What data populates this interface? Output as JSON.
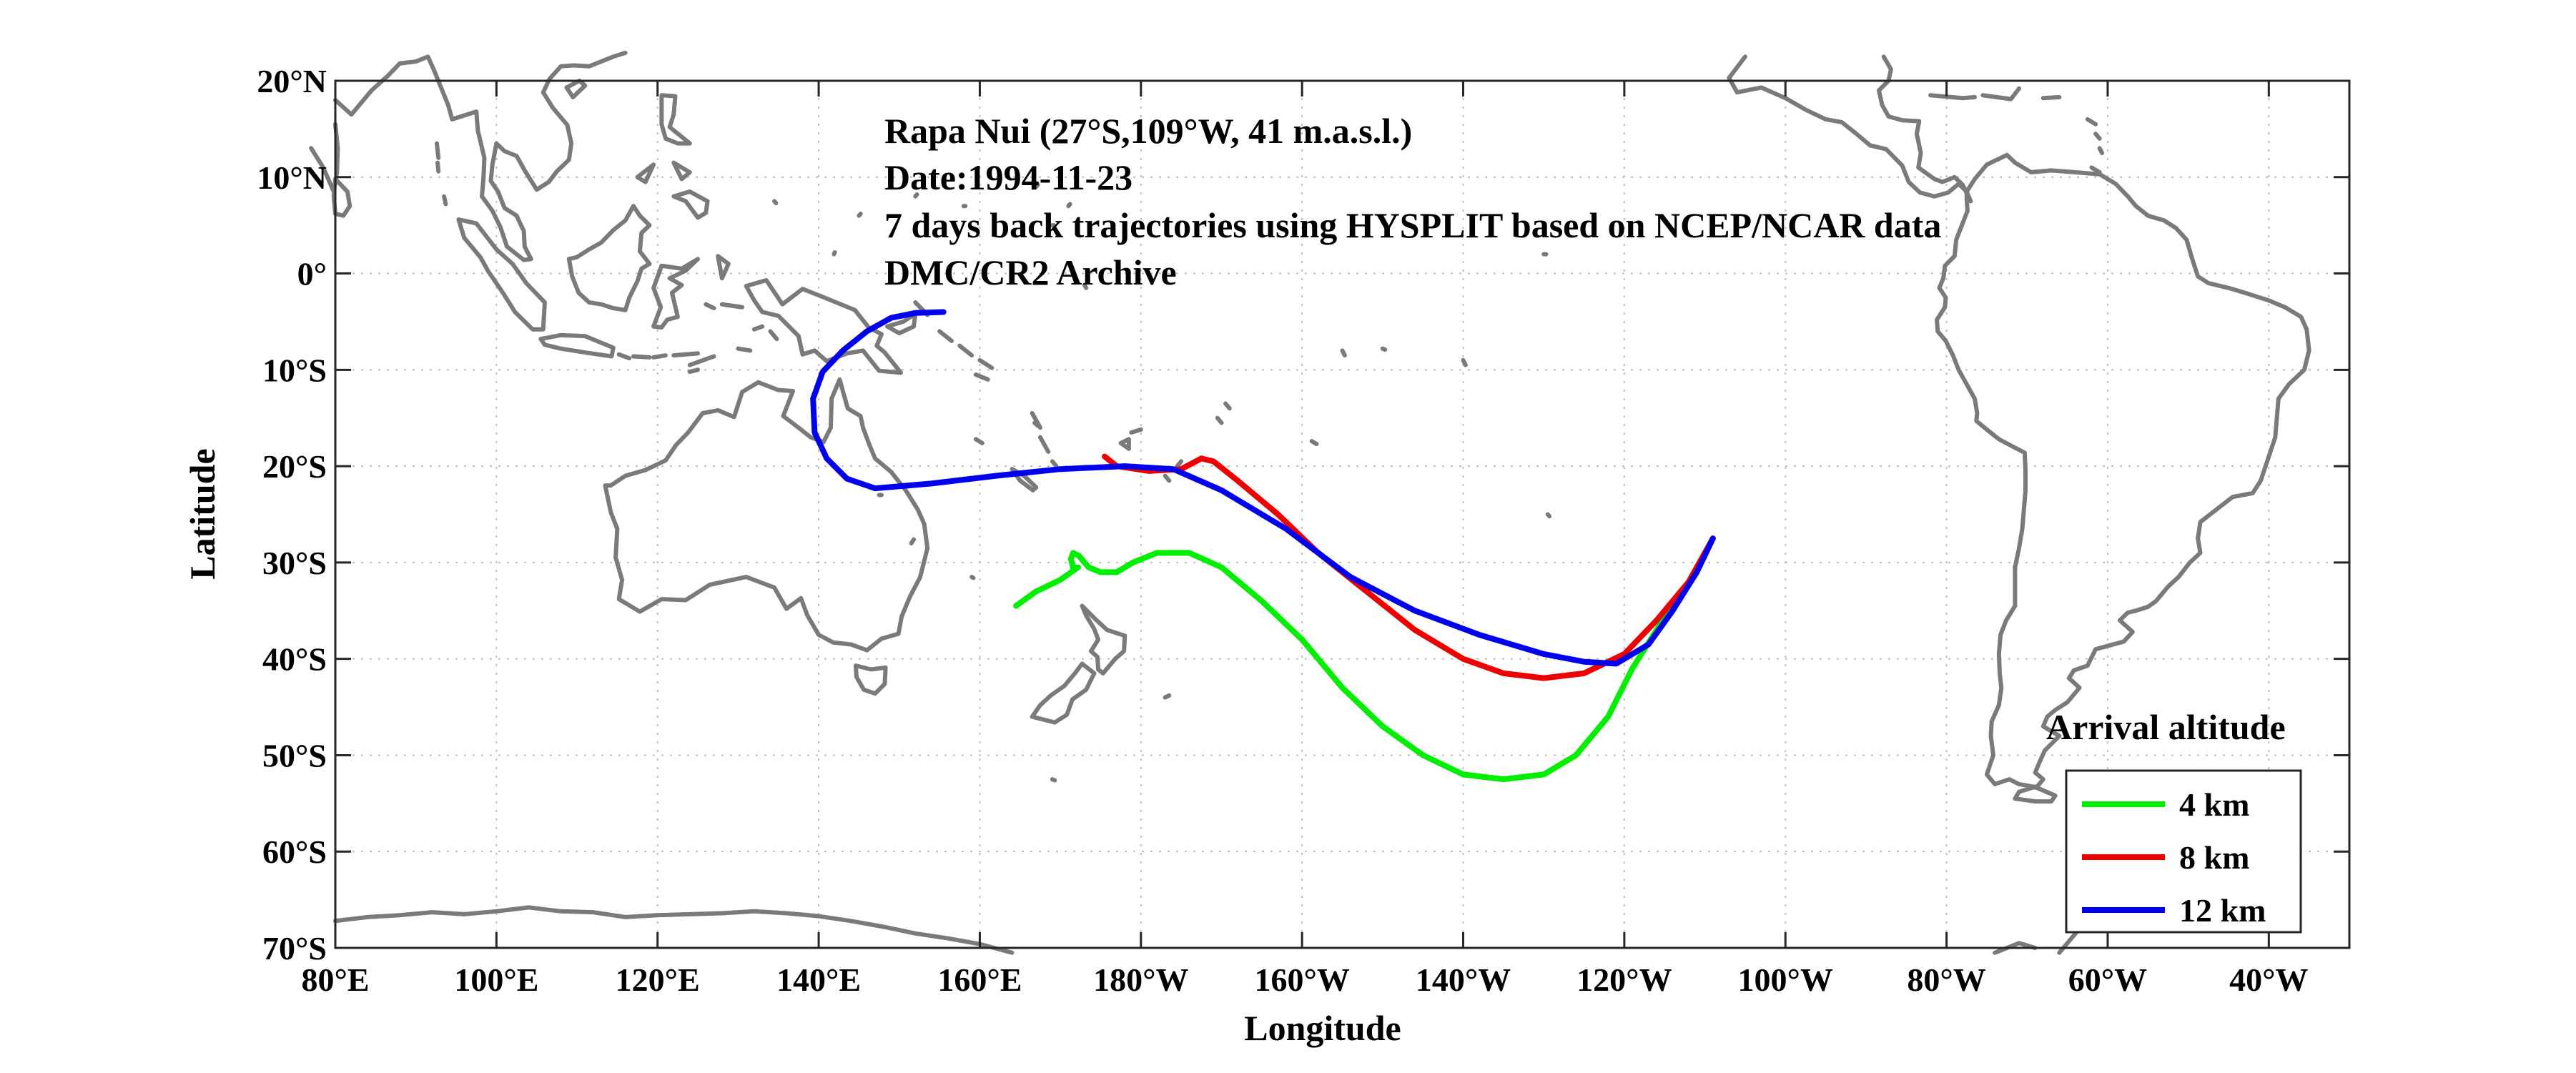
{
  "chart_data": {
    "type": "line",
    "title_lines": [
      "Rapa Nui (27°S,109°W, 41 m.a.s.l.)",
      "Date:1994-11-23",
      "7 days back trajectories using HYSPLIT based on NCEP/NCAR data",
      "DMC/CR2 Archive"
    ],
    "xlabel": "Longitude",
    "ylabel": "Latitude",
    "xlim": [
      80,
      330
    ],
    "ylim": [
      -70,
      20
    ],
    "grid": true,
    "x_ticks": [
      {
        "value": 80,
        "label": "80°E"
      },
      {
        "value": 100,
        "label": "100°E"
      },
      {
        "value": 120,
        "label": "120°E"
      },
      {
        "value": 140,
        "label": "140°E"
      },
      {
        "value": 160,
        "label": "160°E"
      },
      {
        "value": 180,
        "label": "180°W"
      },
      {
        "value": 200,
        "label": "160°W"
      },
      {
        "value": 220,
        "label": "140°W"
      },
      {
        "value": 240,
        "label": "120°W"
      },
      {
        "value": 260,
        "label": "100°W"
      },
      {
        "value": 280,
        "label": "80°W"
      },
      {
        "value": 300,
        "label": "60°W"
      },
      {
        "value": 320,
        "label": "40°W"
      }
    ],
    "y_ticks": [
      {
        "value": 20,
        "label": "20°N"
      },
      {
        "value": 10,
        "label": "10°N"
      },
      {
        "value": 0,
        "label": "0°"
      },
      {
        "value": -10,
        "label": "10°S"
      },
      {
        "value": -20,
        "label": "20°S"
      },
      {
        "value": -30,
        "label": "30°S"
      },
      {
        "value": -40,
        "label": "40°S"
      },
      {
        "value": -50,
        "label": "50°S"
      },
      {
        "value": -60,
        "label": "60°S"
      },
      {
        "value": -70,
        "label": "70°S"
      }
    ],
    "legend": {
      "title": "Arrival altitude",
      "position": "bottom-right"
    },
    "series": [
      {
        "name": "4 km",
        "color": "#00ee00",
        "points": [
          [
            251,
            -27.5
          ],
          [
            248,
            -32
          ],
          [
            244,
            -37
          ],
          [
            241,
            -41
          ],
          [
            238,
            -46
          ],
          [
            234,
            -50
          ],
          [
            230,
            -52
          ],
          [
            225,
            -52.5
          ],
          [
            220,
            -52
          ],
          [
            215,
            -50
          ],
          [
            210,
            -47
          ],
          [
            205,
            -43
          ],
          [
            200,
            -38
          ],
          [
            195,
            -34
          ],
          [
            190,
            -30.5
          ],
          [
            186,
            -29
          ],
          [
            182,
            -29
          ],
          [
            179,
            -30
          ],
          [
            177,
            -31
          ],
          [
            175,
            -31
          ],
          [
            173.5,
            -30.5
          ],
          [
            172.3,
            -29.3
          ],
          [
            171.6,
            -29
          ],
          [
            171.3,
            -29.6
          ],
          [
            171.6,
            -30.6
          ],
          [
            172.2,
            -30.5
          ],
          [
            170,
            -31.8
          ],
          [
            167,
            -33
          ],
          [
            164.5,
            -34.5
          ]
        ]
      },
      {
        "name": "8 km",
        "color": "#ee0000",
        "points": [
          [
            251,
            -27.5
          ],
          [
            248,
            -32
          ],
          [
            244,
            -36
          ],
          [
            240,
            -39.5
          ],
          [
            235,
            -41.5
          ],
          [
            230,
            -42
          ],
          [
            225,
            -41.5
          ],
          [
            220,
            -40
          ],
          [
            214,
            -37
          ],
          [
            208,
            -33
          ],
          [
            202,
            -29
          ],
          [
            197,
            -25
          ],
          [
            192,
            -21.5
          ],
          [
            189,
            -19.5
          ],
          [
            187.5,
            -19.2
          ],
          [
            185,
            -20.3
          ],
          [
            181,
            -20.5
          ],
          [
            177,
            -20
          ],
          [
            175.5,
            -19
          ]
        ]
      },
      {
        "name": "12 km",
        "color": "#0000ee",
        "points": [
          [
            251,
            -27.5
          ],
          [
            249,
            -31
          ],
          [
            246,
            -35
          ],
          [
            243,
            -38.5
          ],
          [
            239,
            -40.5
          ],
          [
            235,
            -40.3
          ],
          [
            230,
            -39.5
          ],
          [
            222,
            -37.5
          ],
          [
            214,
            -35
          ],
          [
            206,
            -31.5
          ],
          [
            198,
            -26.5
          ],
          [
            190,
            -22.5
          ],
          [
            184,
            -20.3
          ],
          [
            178,
            -20
          ],
          [
            170,
            -20.3
          ],
          [
            162,
            -21
          ],
          [
            154,
            -21.8
          ],
          [
            147,
            -22.3
          ],
          [
            143.5,
            -21.3
          ],
          [
            141,
            -19.2
          ],
          [
            139.5,
            -16.5
          ],
          [
            139.3,
            -13
          ],
          [
            140.5,
            -10.2
          ],
          [
            143,
            -8
          ],
          [
            146,
            -6
          ],
          [
            149,
            -4.6
          ],
          [
            152,
            -4.1
          ],
          [
            155.5,
            -4
          ]
        ]
      }
    ]
  },
  "basemap": {
    "coastline_color": "#7a7a7a",
    "landmasses": [
      "australia",
      "new-guinea",
      "new-zealand",
      "south-america",
      "north-america",
      "asia",
      "borneo",
      "sumatra",
      "sulawesi",
      "philippines",
      "java",
      "antarctica"
    ]
  }
}
